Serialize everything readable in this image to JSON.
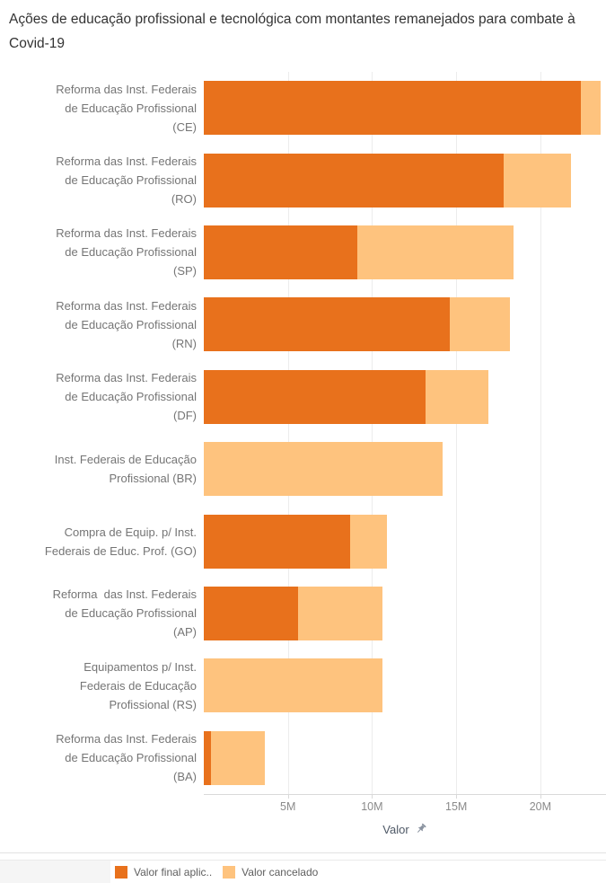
{
  "title": "Ações de educação profissional e tecnológica com montantes remanejados para combate à Covid-19",
  "axis": {
    "label": "Valor",
    "tick_labels": [
      "5M",
      "10M",
      "15M",
      "20M"
    ],
    "tick_values_millions": [
      5,
      10,
      15,
      20
    ],
    "max_millions": 23.9
  },
  "legend": {
    "items": [
      {
        "label": "Valor final aplic..",
        "color": "#e8711c"
      },
      {
        "label": "Valor cancelado",
        "color": "#fec37e"
      }
    ]
  },
  "rows": [
    {
      "label_lines": [
        "Reforma das Inst. Federais",
        "de Educação Profissional",
        "(CE)"
      ]
    },
    {
      "label_lines": [
        "Reforma das Inst. Federais",
        "de Educação Profissional",
        "(RO)"
      ]
    },
    {
      "label_lines": [
        "Reforma das Inst. Federais",
        "de Educação Profissional",
        "(SP)"
      ]
    },
    {
      "label_lines": [
        "Reforma das Inst. Federais",
        "de Educação Profissional",
        "(RN)"
      ]
    },
    {
      "label_lines": [
        "Reforma das Inst. Federais",
        "de Educação Profissional",
        "(DF)"
      ]
    },
    {
      "label_lines": [
        "Inst. Federais de Educação",
        "Profissional (BR)"
      ]
    },
    {
      "label_lines": [
        "Compra de Equip. p/ Inst.",
        "Federais de Educ. Prof. (GO)"
      ]
    },
    {
      "label_lines": [
        "Reforma  das Inst. Federais",
        "de Educação Profissional",
        "(AP)"
      ]
    },
    {
      "label_lines": [
        "Equipamentos p/ Inst.",
        "Federais de Educação",
        "Profissional (RS)"
      ]
    },
    {
      "label_lines": [
        "Reforma das Inst. Federais",
        "de Educação Profissional",
        "(BA)"
      ]
    }
  ],
  "chart_data": {
    "type": "bar",
    "orientation": "horizontal",
    "stacked": true,
    "title": "Ações de educação profissional e tecnológica com montantes remanejados para combate à Covid-19",
    "categories": [
      "Reforma das Inst. Federais de Educação Profissional (CE)",
      "Reforma das Inst. Federais de Educação Profissional (RO)",
      "Reforma das Inst. Federais de Educação Profissional (SP)",
      "Reforma das Inst. Federais de Educação Profissional (RN)",
      "Reforma das Inst. Federais de Educação Profissional (DF)",
      "Inst. Federais de Educação Profissional (BR)",
      "Compra de Equip. p/ Inst. Federais de Educ. Prof. (GO)",
      "Reforma  das Inst. Federais de Educação Profissional (AP)",
      "Equipamentos p/ Inst. Federais de Educação Profissional (RS)",
      "Reforma das Inst. Federais de Educação Profissional (BA)"
    ],
    "series": [
      {
        "name": "Valor final aplic..",
        "color": "#e8711c",
        "values_millions": [
          22.4,
          17.8,
          9.1,
          14.6,
          13.2,
          0,
          8.7,
          5.6,
          0,
          0.4
        ]
      },
      {
        "name": "Valor cancelado",
        "color": "#fec37e",
        "values_millions": [
          1.2,
          4.0,
          9.3,
          3.6,
          3.7,
          14.2,
          2.2,
          5.0,
          10.6,
          3.2
        ]
      }
    ],
    "xlabel": "Valor",
    "x_tick_labels": [
      "5M",
      "10M",
      "15M",
      "20M"
    ],
    "x_tick_values_millions": [
      5,
      10,
      15,
      20
    ],
    "xlim_millions": [
      0,
      23.9
    ],
    "gridlines": true,
    "legend_position": "bottom"
  },
  "colors": {
    "final_aplicado": "#e8711c",
    "cancelado": "#fec37e",
    "title_text": "#333333",
    "category_text": "#757575",
    "tick_text": "#8a8a8a",
    "gridline": "#ececec",
    "axis_line": "#d9d9d9"
  }
}
